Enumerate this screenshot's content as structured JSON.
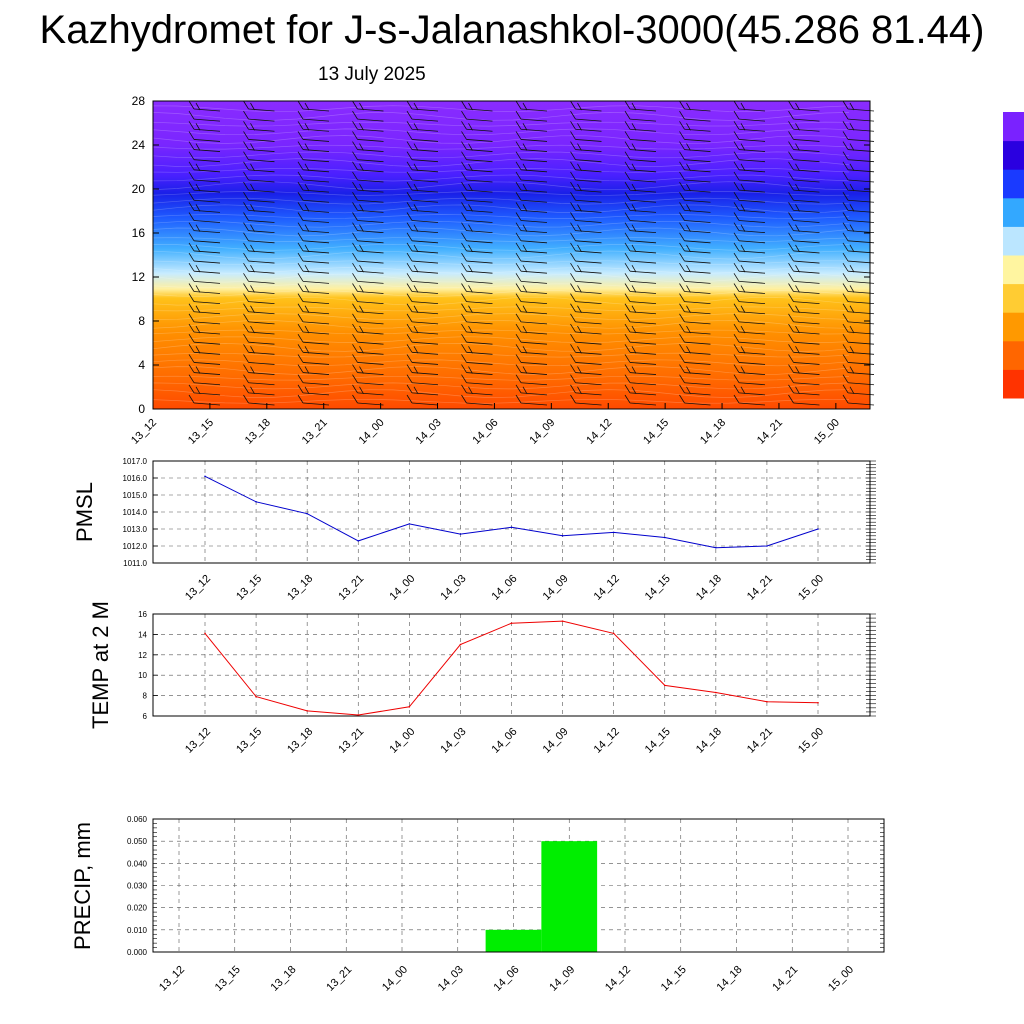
{
  "title": "Kazhydromet for J-s-Jalanashkol-3000(45.286 81.44)",
  "subtitle": "13 July 2025",
  "chart_data": [
    {
      "type": "heatmap",
      "name": "vertical-section",
      "x_categories": [
        "13_12",
        "13_15",
        "13_18",
        "13_21",
        "14_00",
        "14_03",
        "14_06",
        "14_09",
        "14_12",
        "14_15",
        "14_18",
        "14_21",
        "15_00"
      ],
      "yticks": [
        0,
        4,
        8,
        12,
        16,
        20,
        24,
        28
      ],
      "ylim": [
        0,
        28
      ],
      "colorbar": [
        "#ff3300",
        "#ff6600",
        "#ff9900",
        "#ffcc33",
        "#fff5a0",
        "#bbe6ff",
        "#33a8ff",
        "#1a3aff",
        "#2a00e0",
        "#7a22ff"
      ],
      "overlay": "wind-barbs"
    },
    {
      "type": "line",
      "name": "pmsl",
      "ylabel": "PMSL",
      "x_categories": [
        "13_12",
        "13_15",
        "13_18",
        "13_21",
        "14_00",
        "14_03",
        "14_06",
        "14_09",
        "14_12",
        "14_15",
        "14_18",
        "14_21",
        "15_00"
      ],
      "values": [
        1016.1,
        1014.6,
        1013.9,
        1012.3,
        1013.3,
        1012.7,
        1013.1,
        1012.6,
        1012.8,
        1012.5,
        1011.9,
        1012.0,
        1013.0
      ],
      "ylim": [
        1011.0,
        1017.0
      ],
      "yticks": [
        "1011.0",
        "1012.0",
        "1013.0",
        "1014.0",
        "1015.0",
        "1016.0",
        "1017.0"
      ],
      "color": "#0000cc",
      "grid": true
    },
    {
      "type": "line",
      "name": "temp",
      "ylabel": "TEMP at 2 M",
      "x_categories": [
        "13_12",
        "13_15",
        "13_18",
        "13_21",
        "14_00",
        "14_03",
        "14_06",
        "14_09",
        "14_12",
        "14_15",
        "14_18",
        "14_21",
        "15_00"
      ],
      "values": [
        14.1,
        7.9,
        6.5,
        6.1,
        6.9,
        13.0,
        15.1,
        15.3,
        14.1,
        9.0,
        8.3,
        7.4,
        7.3
      ],
      "ylim": [
        6,
        16
      ],
      "yticks": [
        "6",
        "8",
        "10",
        "12",
        "14",
        "16"
      ],
      "color": "#ee0000",
      "grid": true
    },
    {
      "type": "bar",
      "name": "precip",
      "ylabel": "PRECIP, mm",
      "x_categories": [
        "13_12",
        "13_15",
        "13_18",
        "13_21",
        "14_00",
        "14_03",
        "14_06",
        "14_09",
        "14_12",
        "14_15",
        "14_18",
        "14_21",
        "15_00"
      ],
      "values": [
        0,
        0,
        0,
        0,
        0,
        0,
        0.01,
        0.05,
        0,
        0,
        0,
        0,
        0
      ],
      "ylim": [
        0,
        0.06
      ],
      "yticks": [
        "0.000",
        "0.010",
        "0.020",
        "0.030",
        "0.040",
        "0.050",
        "0.060"
      ],
      "color": "#00ee00",
      "grid": true
    }
  ]
}
